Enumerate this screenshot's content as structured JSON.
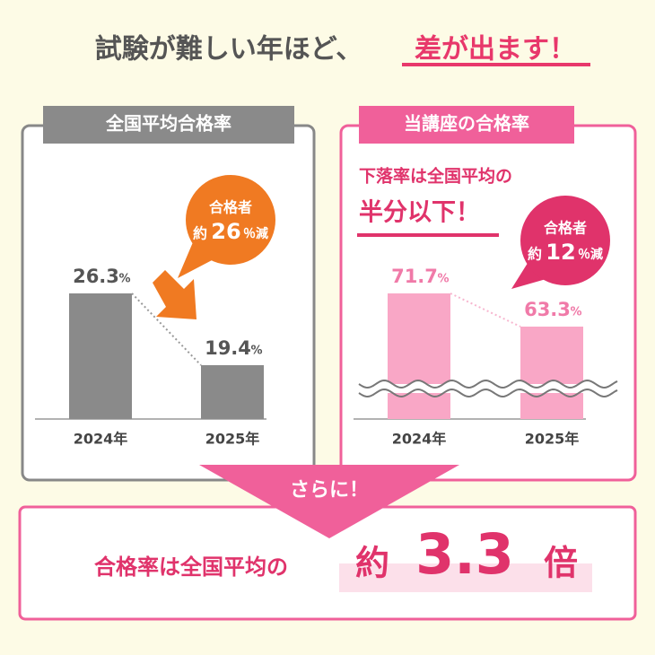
{
  "title": {
    "lead": "試験が難しい年ほど、",
    "emphasis": "差が出ます！"
  },
  "national": {
    "header": "全国平均合格率",
    "categories": [
      "2024年",
      "2025年"
    ],
    "values": [
      26.3,
      19.4
    ],
    "unit": "%",
    "callout": {
      "line1": "合格者",
      "prefix": "約",
      "number": "26",
      "suffix": "％減"
    }
  },
  "course": {
    "header": "当講座の合格率",
    "note1": "下落率は全国平均の",
    "note2": "半分以下！",
    "categories": [
      "2024年",
      "2025年"
    ],
    "values": [
      71.7,
      63.3
    ],
    "unit": "%",
    "callout": {
      "line1": "合格者",
      "prefix": "約",
      "number": "12",
      "suffix": "％減"
    }
  },
  "summary": {
    "banner": "さらに！",
    "text": "合格率は全国平均の",
    "prefix": "約",
    "number": "3.3",
    "suffix": "倍"
  }
}
